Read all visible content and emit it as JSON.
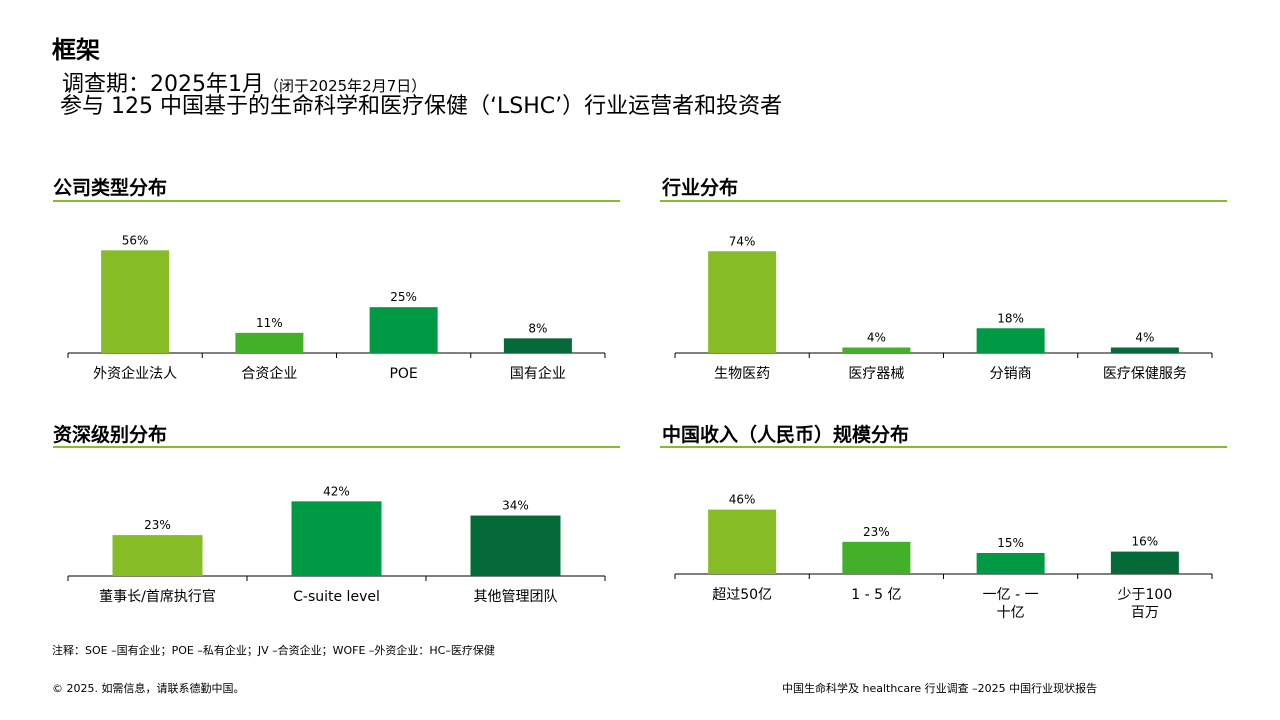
{
  "header": {
    "title": "框架",
    "period_label": "调查期：2025年1月",
    "period_note": "（闭于2025年2月7日）",
    "participants": "参与 125 中国基于的生命科学和医疗保健（‘LSHC’）行业运营者和投资者"
  },
  "colors": {
    "accent_line": "#86BC25",
    "bar_light_green": "#86BC25",
    "bar_mid_green": "#43B02A",
    "bar_green": "#009A44",
    "bar_dark_green": "#046A38"
  },
  "sections": {
    "company_type": {
      "title": "公司类型分布"
    },
    "industry": {
      "title": "行业分布"
    },
    "seniority": {
      "title": "资深级别分布"
    },
    "revenue": {
      "title": "中国收入（人民币）规模分布"
    }
  },
  "chart_data": [
    {
      "type": "bar",
      "title": "公司类型分布",
      "categories": [
        "外资企业法人",
        "合资企业",
        "POE",
        "国有企业"
      ],
      "values": [
        56,
        11,
        25,
        8
      ],
      "labels": [
        "56%",
        "11%",
        "25%",
        "8%"
      ],
      "colors": [
        "#86BC25",
        "#43B02A",
        "#009A44",
        "#046A38"
      ],
      "ylim": [
        0,
        60
      ]
    },
    {
      "type": "bar",
      "title": "行业分布",
      "categories": [
        "生物医药",
        "医疗器械",
        "分销商",
        "医疗保健服务"
      ],
      "values": [
        74,
        4,
        18,
        4
      ],
      "labels": [
        "74%",
        "4%",
        "18%",
        "4%"
      ],
      "colors": [
        "#86BC25",
        "#43B02A",
        "#009A44",
        "#046A38"
      ],
      "ylim": [
        0,
        80
      ]
    },
    {
      "type": "bar",
      "title": "资深级别分布",
      "categories": [
        "董事长/首席执行官",
        "C-suite level",
        "其他管理团队"
      ],
      "values": [
        23,
        42,
        34
      ],
      "labels": [
        "23%",
        "42%",
        "34%"
      ],
      "colors": [
        "#86BC25",
        "#009A44",
        "#046A38"
      ],
      "ylim": [
        0,
        45
      ]
    },
    {
      "type": "bar",
      "title": "中国收入（人民币）规模分布",
      "categories": [
        [
          "超过50亿"
        ],
        [
          "1 - 5 亿"
        ],
        [
          "一亿 - 一",
          "十亿"
        ],
        [
          "少于100",
          "百万"
        ]
      ],
      "values": [
        46,
        23,
        15,
        16
      ],
      "labels": [
        "46%",
        "23%",
        "15%",
        "16%"
      ],
      "colors": [
        "#86BC25",
        "#43B02A",
        "#009A44",
        "#046A38"
      ],
      "ylim": [
        0,
        50
      ]
    }
  ],
  "footer": {
    "note": "注释：SOE –国有企业；POE –私有企业；JV –合资企业；WOFE –外资企业：HC–医疗保健",
    "copyright": "© 2025. 如需信息，请联系德勤中国。",
    "report": "中国生命科学及 healthcare 行业调查 –2025 中国行业现状报告"
  }
}
